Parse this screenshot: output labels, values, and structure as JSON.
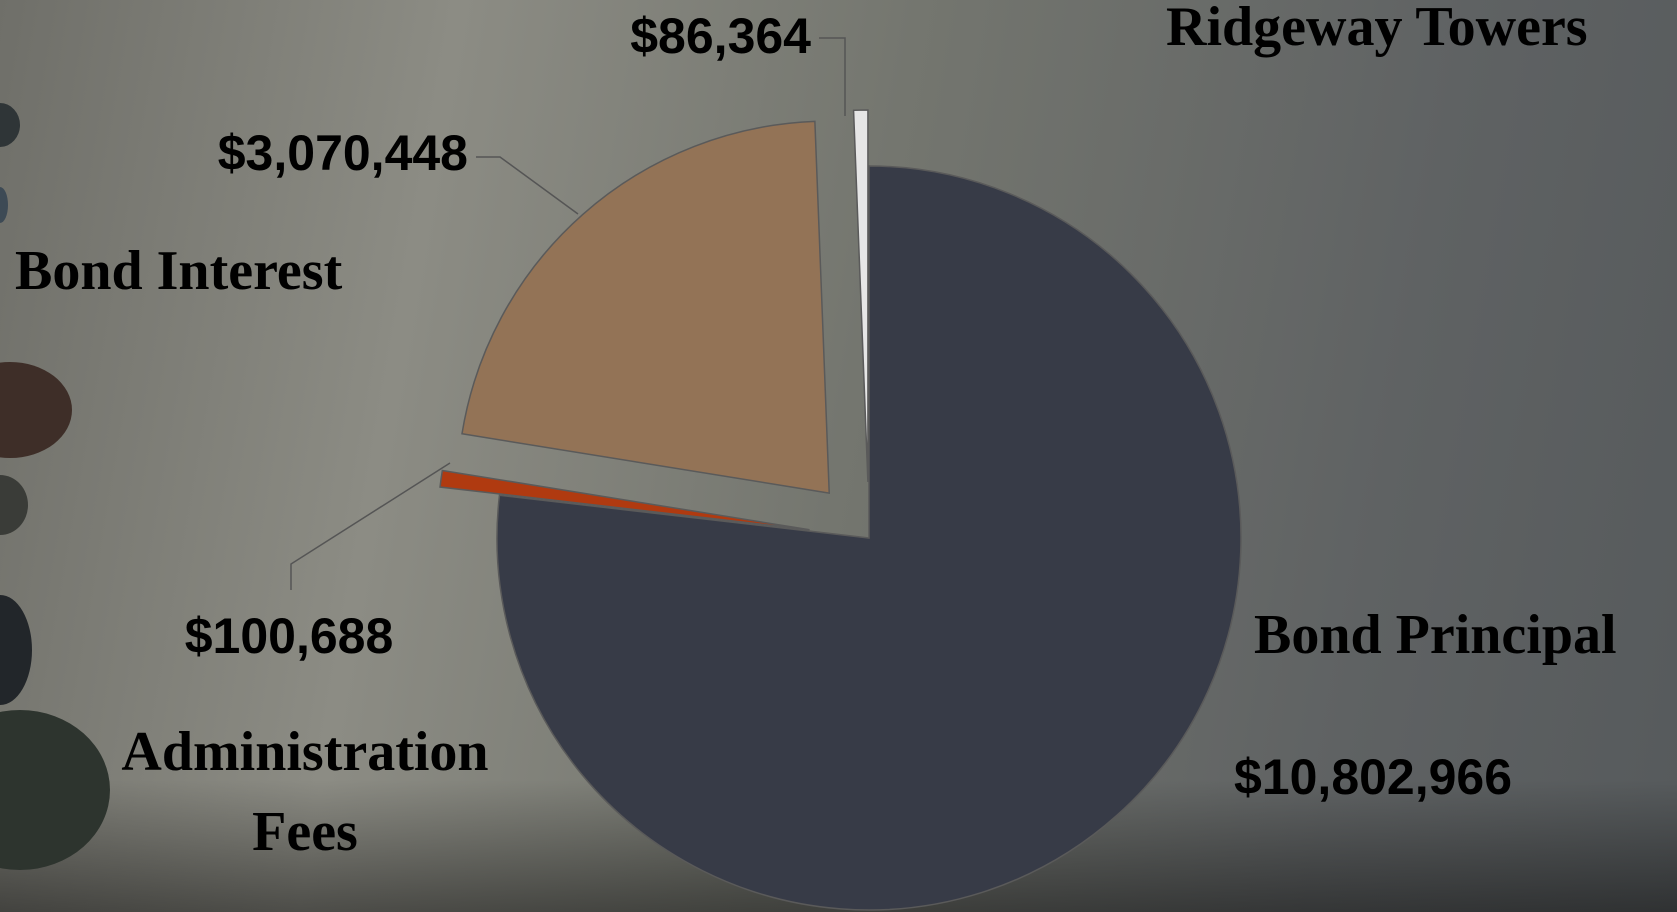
{
  "chart_data": {
    "type": "pie",
    "categories": [
      "Bond Principal",
      "Administration Fees",
      "Bond Interest",
      "Ridgeway Towers"
    ],
    "values": [
      10802966,
      100688,
      3070448,
      86364
    ],
    "value_labels": [
      "$10,802,966",
      "$100,688",
      "$3,070,448",
      "$86,364"
    ],
    "colors": [
      "#373b47",
      "#b03a10",
      "#937356",
      "#e6e6e6"
    ]
  }
}
